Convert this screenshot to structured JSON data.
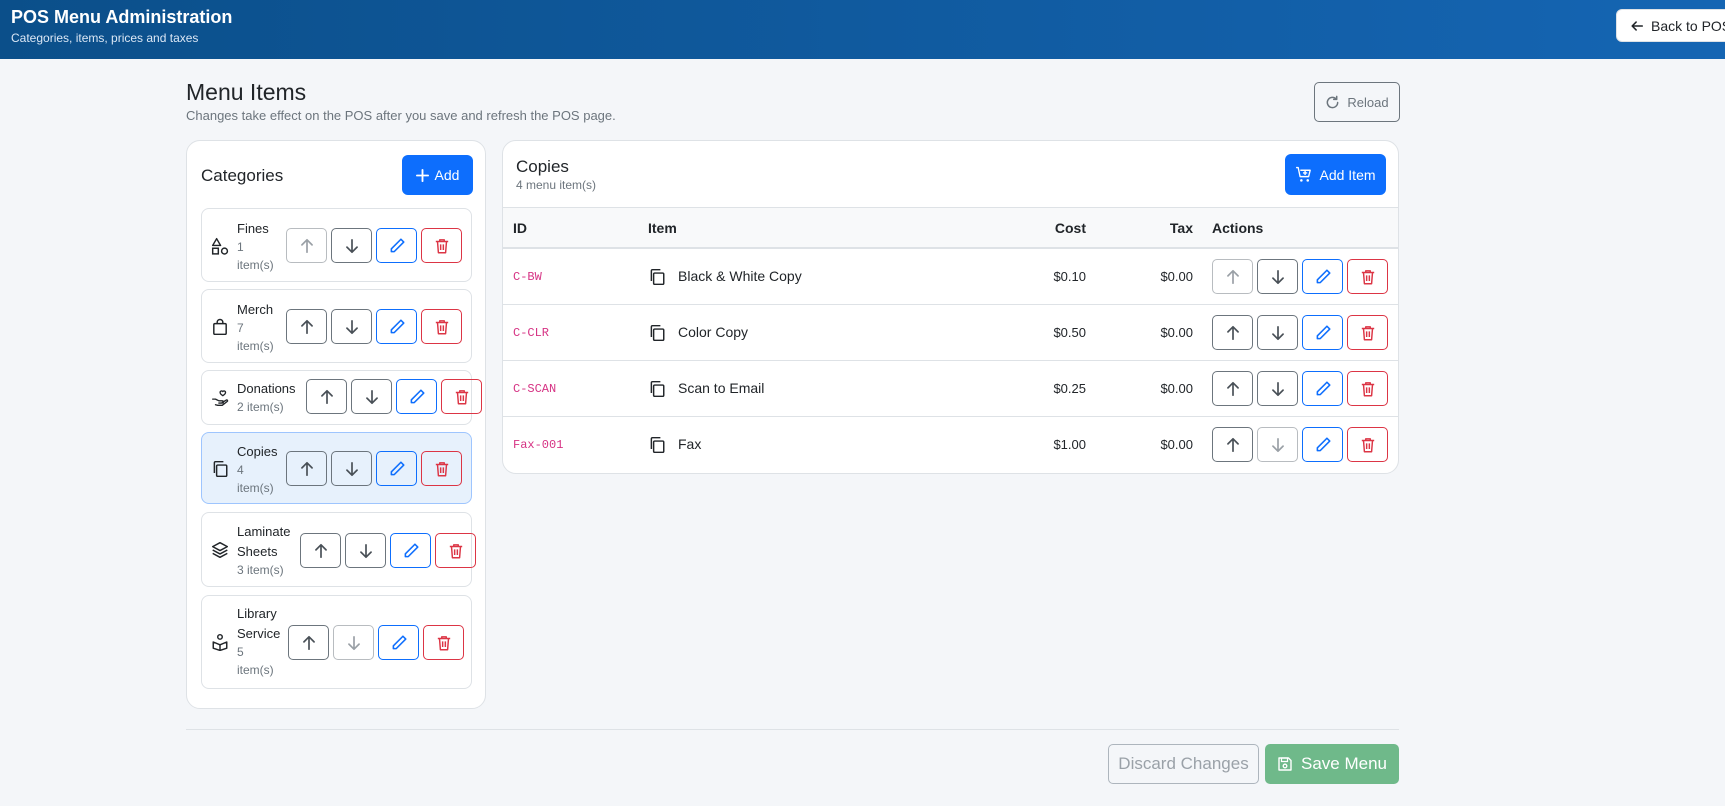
{
  "header": {
    "title": "POS Menu Administration",
    "subtitle": "Categories, items, prices and taxes",
    "back_label": "Back to POS"
  },
  "page": {
    "title": "Menu Items",
    "subtitle": "Changes take effect on the POS after you save and refresh the POS page.",
    "reload_label": "Reload"
  },
  "categories": {
    "title": "Categories",
    "add_label": "Add",
    "items": [
      {
        "name": "Fines",
        "count": "1 item(s)",
        "icon": "shapes-icon",
        "active": false
      },
      {
        "name": "Merch",
        "count": "7 item(s)",
        "icon": "bag-icon",
        "active": false
      },
      {
        "name": "Donations",
        "count": "2 item(s)",
        "icon": "hand-heart-icon",
        "active": false
      },
      {
        "name": "Copies",
        "count": "4 item(s)",
        "icon": "copy-icon",
        "active": true
      },
      {
        "name": "Laminate Sheets",
        "count": "3 item(s)",
        "icon": "layers-icon",
        "active": false
      },
      {
        "name": "Library Service",
        "count": "5 item(s)",
        "icon": "box-person-icon",
        "active": false
      }
    ]
  },
  "items_panel": {
    "title": "Copies",
    "subtitle": "4 menu item(s)",
    "add_label": "Add Item",
    "columns": {
      "id": "ID",
      "item": "Item",
      "cost": "Cost",
      "tax": "Tax",
      "actions": "Actions"
    },
    "rows": [
      {
        "id": "C-BW",
        "name": "Black & White Copy",
        "cost": "$0.10",
        "tax": "$0.00"
      },
      {
        "id": "C-CLR",
        "name": "Color Copy",
        "cost": "$0.50",
        "tax": "$0.00"
      },
      {
        "id": "C-SCAN",
        "name": "Scan to Email",
        "cost": "$0.25",
        "tax": "$0.00"
      },
      {
        "id": "Fax-001",
        "name": "Fax",
        "cost": "$1.00",
        "tax": "$0.00"
      }
    ]
  },
  "footer": {
    "discard_label": "Discard Changes",
    "save_label": "Save Menu"
  },
  "colors": {
    "header_start": "#0b4f8a",
    "header_end": "#1565b3",
    "primary": "#0d6efd",
    "danger": "#dc3545",
    "success_disabled": "#6fb98a",
    "code_pink": "#d63384"
  }
}
